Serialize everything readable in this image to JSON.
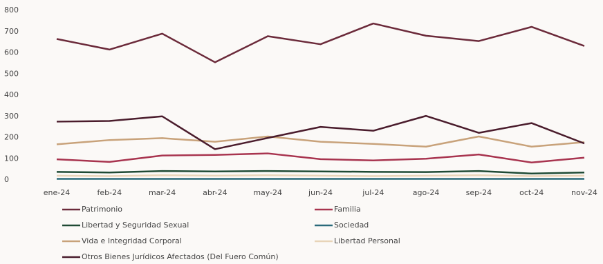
{
  "chart_data": {
    "type": "line",
    "categories": [
      "ene-24",
      "feb-24",
      "mar-24",
      "abr-24",
      "may-24",
      "jun-24",
      "jul-24",
      "ago-24",
      "sep-24",
      "oct-24",
      "nov-24"
    ],
    "series": [
      {
        "name": "Patrimonio",
        "color": "#6b2a3a",
        "values": [
          665,
          615,
          690,
          555,
          678,
          640,
          738,
          680,
          655,
          722,
          632
        ]
      },
      {
        "name": "Familia",
        "color": "#a8344f",
        "values": [
          97,
          85,
          115,
          118,
          125,
          98,
          92,
          100,
          120,
          82,
          105
        ]
      },
      {
        "name": "Libertad y Seguridad Sexual",
        "color": "#1f4a34",
        "values": [
          38,
          35,
          42,
          40,
          42,
          40,
          38,
          37,
          42,
          30,
          35
        ]
      },
      {
        "name": "Sociedad",
        "color": "#2a6a7a",
        "values": [
          5,
          5,
          5,
          5,
          5,
          5,
          5,
          5,
          5,
          5,
          5
        ]
      },
      {
        "name": "Vida e Integridad Corporal",
        "color": "#c8a27a",
        "values": [
          168,
          188,
          197,
          180,
          205,
          180,
          170,
          157,
          205,
          157,
          178
        ]
      },
      {
        "name": "Libertad Personal",
        "color": "#e8d4b8",
        "values": [
          20,
          18,
          22,
          20,
          22,
          20,
          18,
          20,
          22,
          18,
          20
        ]
      },
      {
        "name": "Otros Bienes Jurídicos Afectados (Del Fuero Común)",
        "color": "#4a1c2c",
        "values": [
          275,
          278,
          300,
          145,
          198,
          250,
          232,
          302,
          222,
          268,
          172
        ]
      }
    ],
    "ylim": [
      0,
      800
    ],
    "yticks": [
      0,
      100,
      200,
      300,
      400,
      500,
      600,
      700,
      800
    ]
  }
}
